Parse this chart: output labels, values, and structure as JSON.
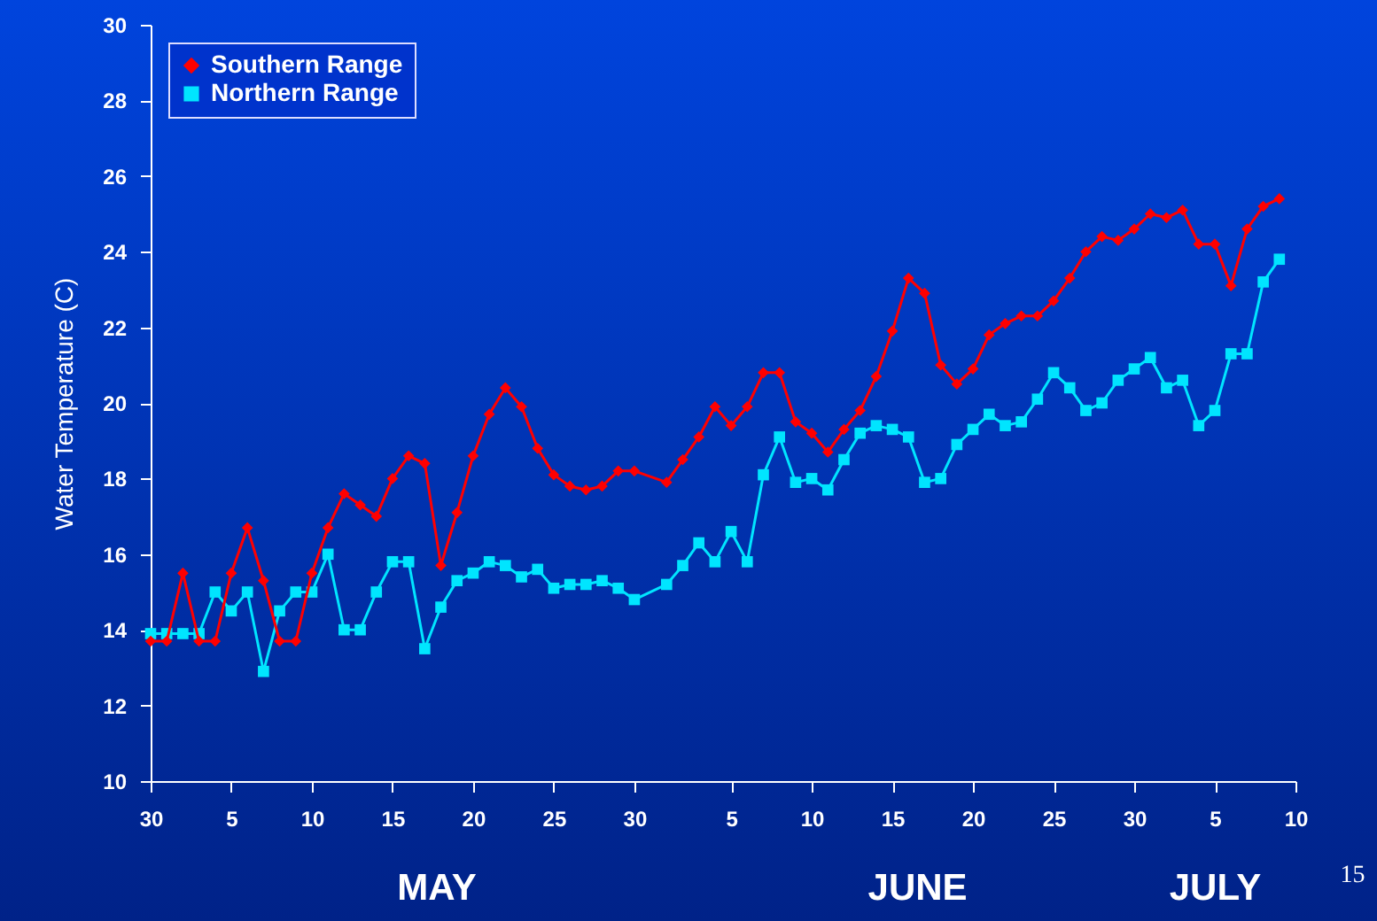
{
  "chart_data": {
    "type": "line",
    "ylabel": "Water Temperature (C)",
    "x": [
      "--04-30",
      "--05-01",
      "--05-02",
      "--05-03",
      "--05-04",
      "--05-05",
      "--05-06",
      "--05-07",
      "--05-08",
      "--05-09",
      "--05-10",
      "--05-11",
      "--05-12",
      "--05-13",
      "--05-14",
      "--05-15",
      "--05-16",
      "--05-17",
      "--05-18",
      "--05-19",
      "--05-20",
      "--05-21",
      "--05-22",
      "--05-23",
      "--05-24",
      "--05-25",
      "--05-26",
      "--05-27",
      "--05-28",
      "--05-29",
      "--05-30",
      "--06-01",
      "--06-02",
      "--06-03",
      "--06-04",
      "--06-05",
      "--06-06",
      "--06-07",
      "--06-08",
      "--06-09",
      "--06-10",
      "--06-11",
      "--06-12",
      "--06-13",
      "--06-14",
      "--06-15",
      "--06-16",
      "--06-17",
      "--06-18",
      "--06-19",
      "--06-20",
      "--06-21",
      "--06-22",
      "--06-23",
      "--06-24",
      "--06-25",
      "--06-26",
      "--06-27",
      "--06-28",
      "--06-29",
      "--06-30",
      "--07-01",
      "--07-02",
      "--07-03",
      "--07-04",
      "--07-05",
      "--07-06",
      "--07-07",
      "--07-08",
      "--07-09"
    ],
    "xlim": [
      "--04-30",
      "--07-10"
    ],
    "xticks": [
      {
        "value": "--04-30",
        "label": "30"
      },
      {
        "value": "--05-05",
        "label": "5"
      },
      {
        "value": "--05-10",
        "label": "10"
      },
      {
        "value": "--05-15",
        "label": "15"
      },
      {
        "value": "--05-20",
        "label": "20"
      },
      {
        "value": "--05-25",
        "label": "25"
      },
      {
        "value": "--05-30",
        "label": "30"
      },
      {
        "value": "--06-05",
        "label": "5"
      },
      {
        "value": "--06-10",
        "label": "10"
      },
      {
        "value": "--06-15",
        "label": "15"
      },
      {
        "value": "--06-20",
        "label": "20"
      },
      {
        "value": "--06-25",
        "label": "25"
      },
      {
        "value": "--06-30",
        "label": "30"
      },
      {
        "value": "--07-05",
        "label": "5"
      },
      {
        "value": "--07-10",
        "label": "10"
      }
    ],
    "ylim": [
      10,
      30
    ],
    "yticks": [
      10,
      12,
      14,
      16,
      18,
      20,
      22,
      24,
      26,
      28,
      30
    ],
    "series": [
      {
        "name": "Southern Range",
        "color": "#ff0000",
        "marker": "diamond",
        "values": [
          13.7,
          13.7,
          15.5,
          13.7,
          13.7,
          15.5,
          16.7,
          15.3,
          13.7,
          13.7,
          15.5,
          16.7,
          17.6,
          17.3,
          17.0,
          18.0,
          18.6,
          18.4,
          15.7,
          17.1,
          18.6,
          19.7,
          20.4,
          19.9,
          18.8,
          18.1,
          17.8,
          17.7,
          17.8,
          18.2,
          18.2,
          17.9,
          18.5,
          19.1,
          19.9,
          19.4,
          19.9,
          20.8,
          20.8,
          19.5,
          19.2,
          18.7,
          19.3,
          19.8,
          20.7,
          21.9,
          23.3,
          22.9,
          21.0,
          20.5,
          20.9,
          21.8,
          22.1,
          22.3,
          22.3,
          22.7,
          23.3,
          24.0,
          24.4,
          24.3,
          24.6,
          25.0,
          24.9,
          25.1,
          24.2,
          24.2,
          23.1,
          24.6,
          25.2,
          25.4
        ]
      },
      {
        "name": "Northern Range",
        "color": "#00e5ff",
        "marker": "square",
        "values": [
          13.9,
          13.9,
          13.9,
          13.9,
          15.0,
          14.5,
          15.0,
          12.9,
          14.5,
          15.0,
          15.0,
          16.0,
          14.0,
          14.0,
          15.0,
          15.8,
          15.8,
          13.5,
          14.6,
          15.3,
          15.5,
          15.8,
          15.7,
          15.4,
          15.6,
          15.1,
          15.2,
          15.2,
          15.3,
          15.1,
          14.8,
          15.2,
          15.7,
          16.3,
          15.8,
          16.6,
          15.8,
          18.1,
          19.1,
          17.9,
          18.0,
          17.7,
          18.5,
          19.2,
          19.4,
          19.3,
          19.1,
          17.9,
          18.0,
          18.9,
          19.3,
          19.7,
          19.4,
          19.5,
          20.1,
          20.8,
          20.4,
          19.8,
          20.0,
          20.6,
          20.9,
          21.2,
          20.4,
          20.6,
          19.4,
          19.8,
          21.3,
          21.3,
          23.2,
          23.8
        ]
      }
    ],
    "legend": "top left",
    "grid": false,
    "annotations": [
      "MAY",
      "JUNE",
      "JULY",
      "15"
    ]
  }
}
